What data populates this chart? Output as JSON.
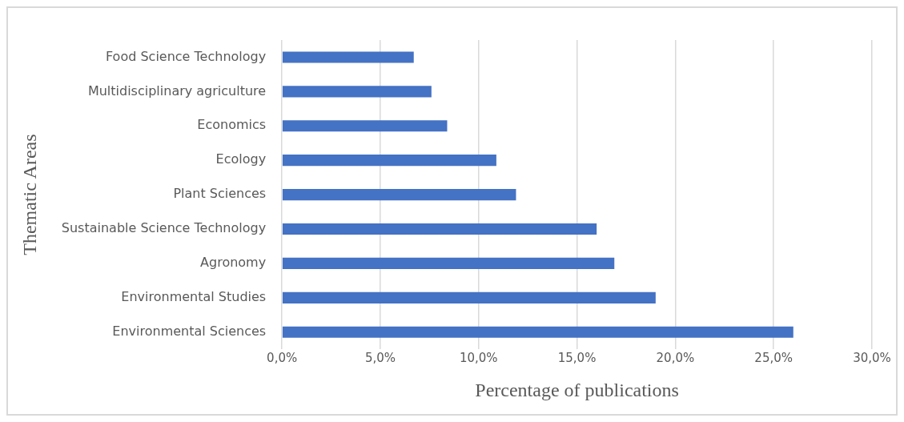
{
  "chart_data": {
    "type": "bar",
    "orientation": "horizontal",
    "xlabel": "Percentage of publications",
    "ylabel": "Thematic Areas",
    "categories": [
      "Food Science Technology",
      "Multidisciplinary agriculture",
      "Economics",
      "Ecology",
      "Plant Sciences",
      "Sustainable Science Technology",
      "Agronomy",
      "Environmental Studies",
      "Environmental Sciences"
    ],
    "values": [
      6.7,
      7.6,
      8.4,
      10.9,
      11.9,
      16.0,
      16.9,
      19.0,
      26.0
    ],
    "color": "#4472c4",
    "xlim": [
      0,
      30
    ],
    "xticks": [
      {
        "value": 0,
        "label": "0,0%"
      },
      {
        "value": 5,
        "label": "5,0%"
      },
      {
        "value": 10,
        "label": "10,0%"
      },
      {
        "value": 15,
        "label": "15,0%"
      },
      {
        "value": 20,
        "label": "20,0%"
      },
      {
        "value": 25,
        "label": "25,0%"
      },
      {
        "value": 30,
        "label": "30,0%"
      }
    ],
    "grid": "x",
    "legend": false
  }
}
